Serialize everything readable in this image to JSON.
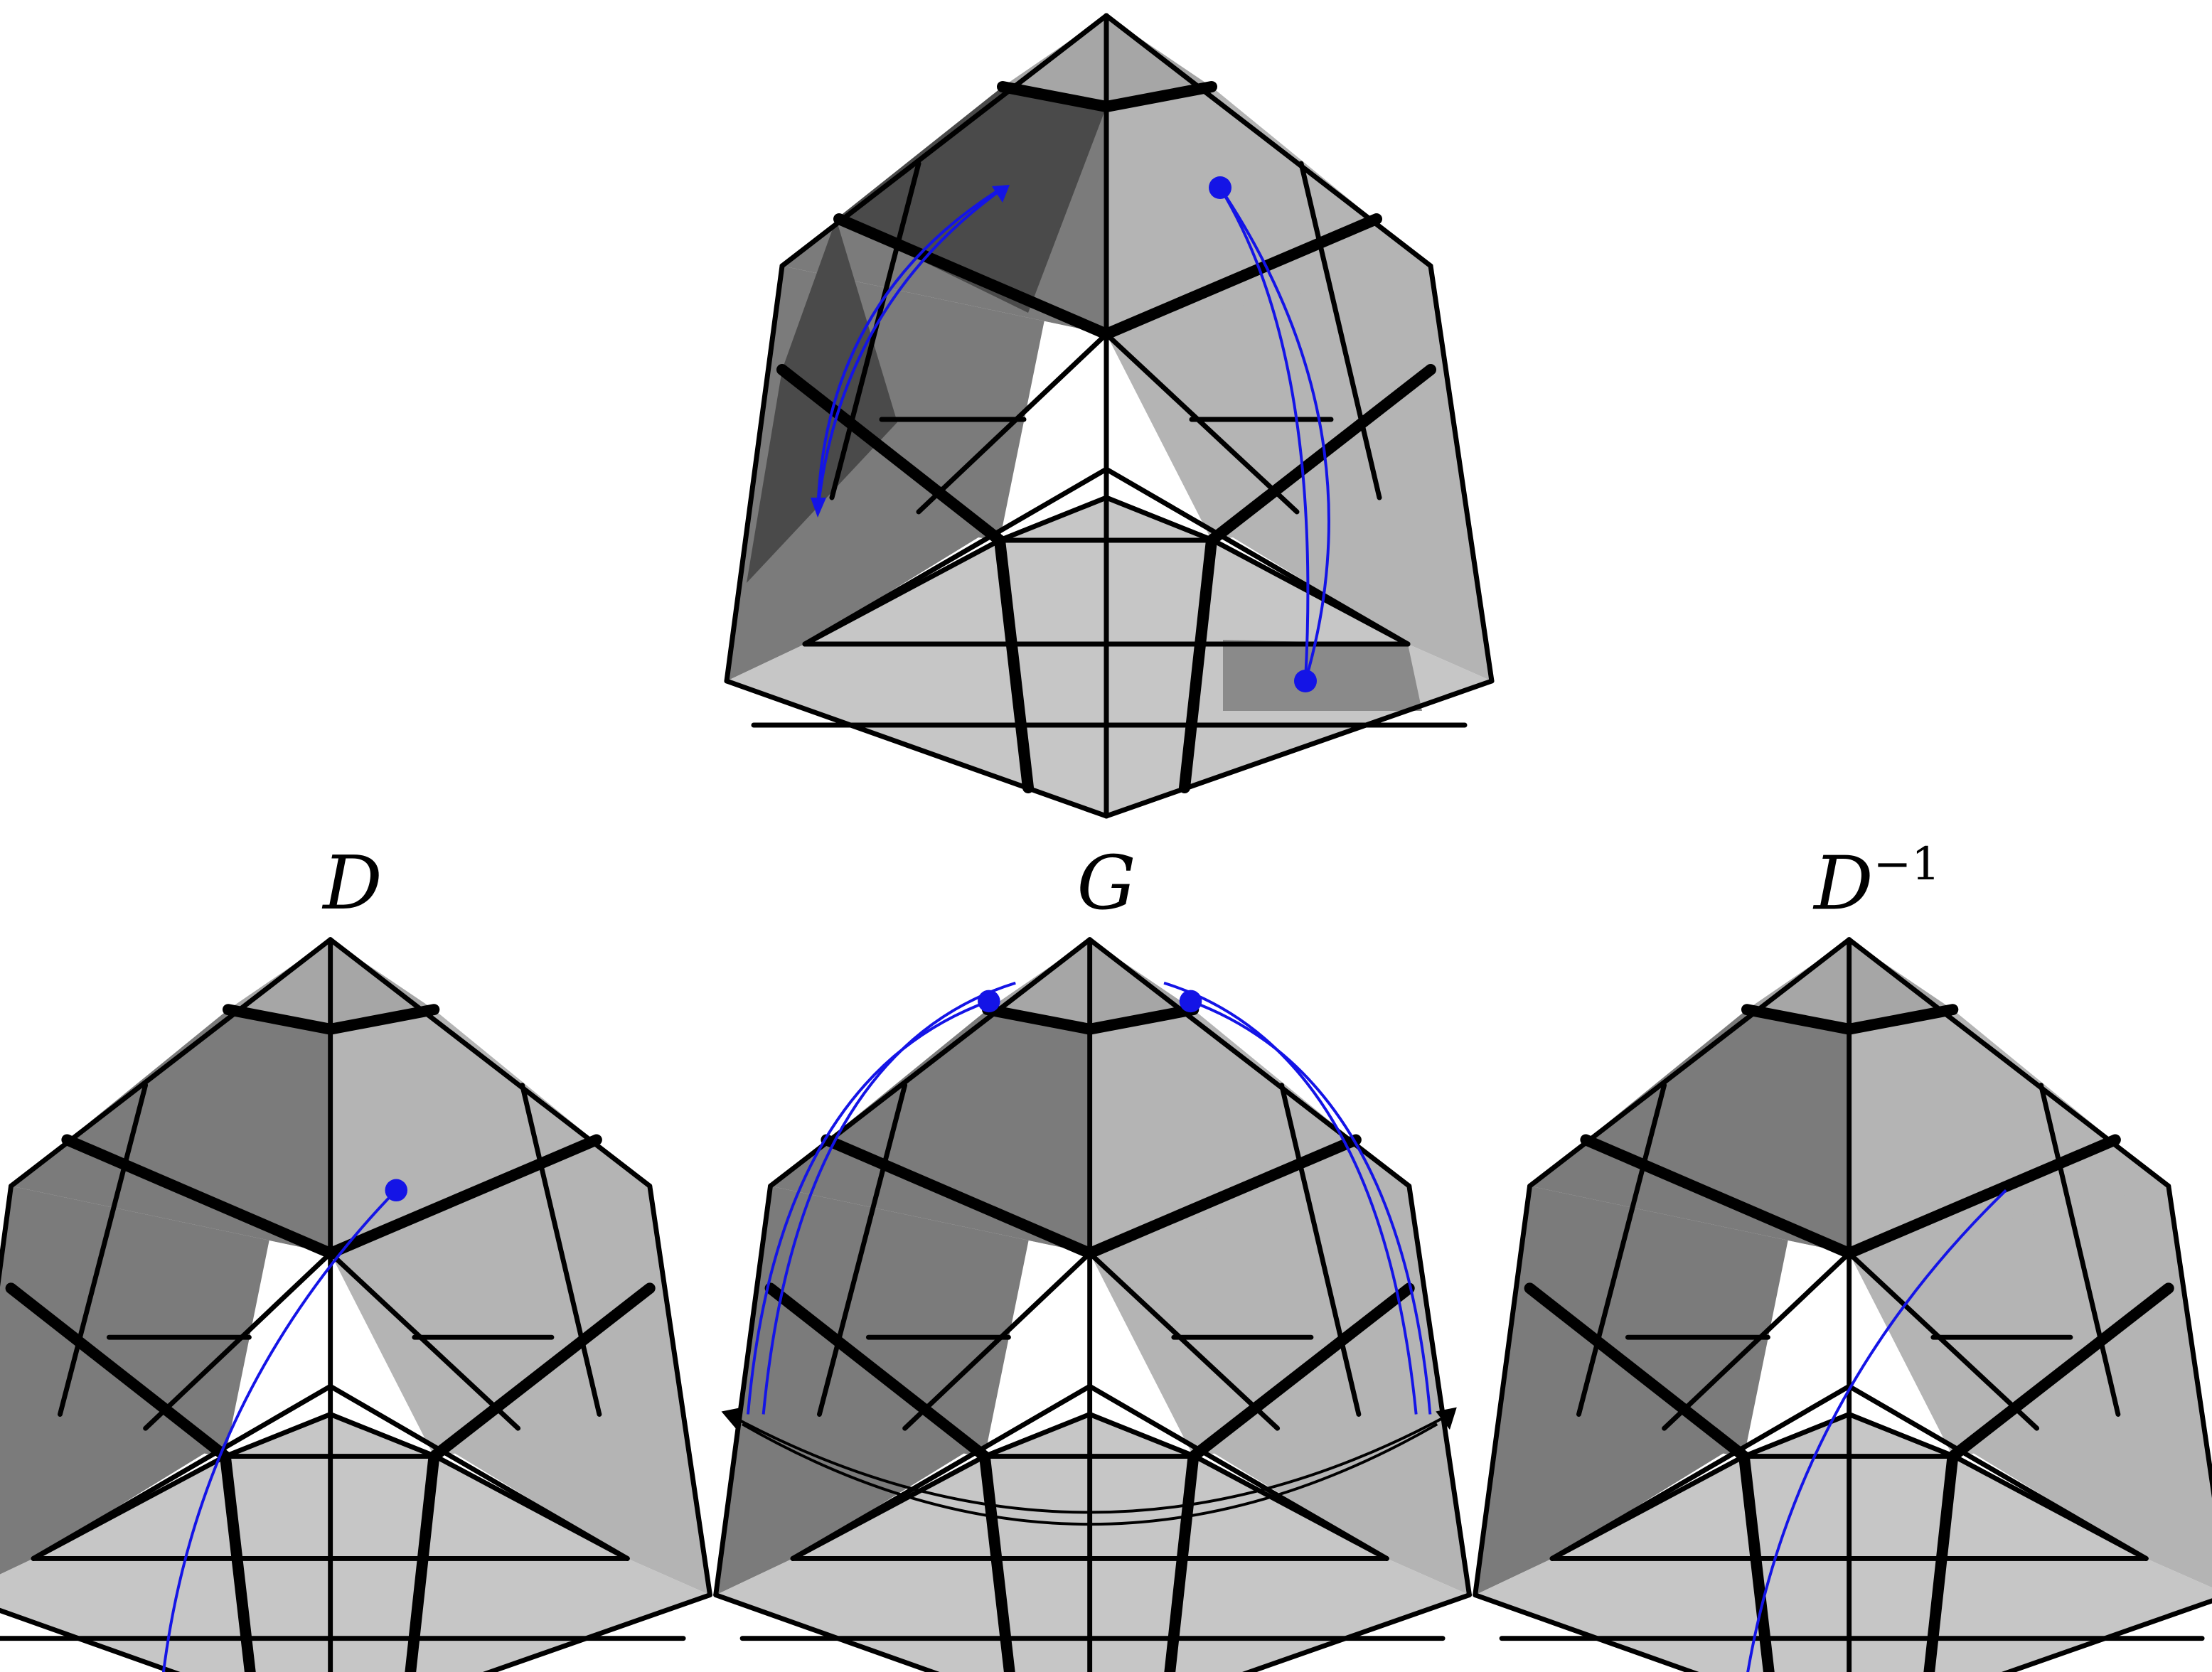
{
  "figure": {
    "colors": {
      "background": "#ffffff",
      "top_face_shade": "#a6a6a6",
      "left_face_shade": "#7b7b7b",
      "right_face_shade": "#b4b4b4",
      "bottom_face_shade": "#c6c6c6",
      "highlight_dark": "#4a4a4a",
      "highlight_mid": "#8a8a8a",
      "edge": "#000000",
      "arrow": "#1414e6",
      "arrow_alt": "#000000"
    },
    "panels": [
      {
        "id": "top",
        "label": "",
        "icons": [
          "cube-puzzle-icon",
          "swap-arrows-icon"
        ]
      },
      {
        "id": "bottom-left",
        "label": "D",
        "superscript": "",
        "icons": [
          "cube-puzzle-icon",
          "curved-arrow-icon"
        ]
      },
      {
        "id": "bottom-middle",
        "label": "G",
        "superscript": "",
        "icons": [
          "cube-puzzle-icon",
          "double-arc-arrows-icon"
        ]
      },
      {
        "id": "bottom-right",
        "label": "D",
        "superscript": "−1",
        "icons": [
          "cube-puzzle-icon",
          "curved-arrow-icon"
        ]
      }
    ]
  }
}
